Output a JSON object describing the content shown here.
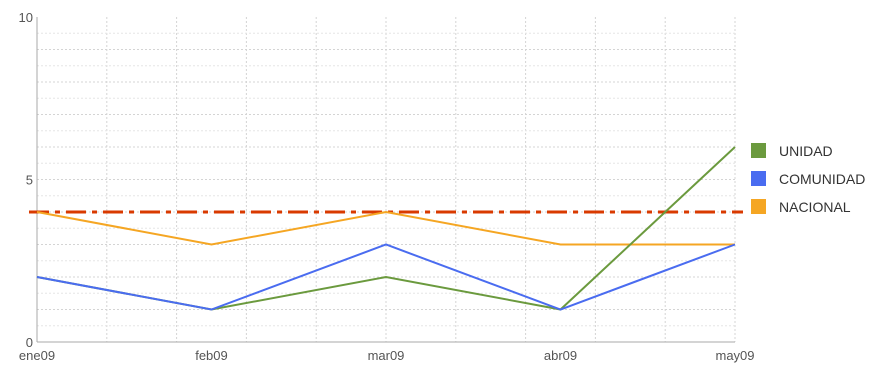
{
  "chart_data": {
    "type": "line",
    "title": "",
    "xlabel": "",
    "ylabel": "",
    "categories": [
      "ene09",
      "feb09",
      "mar09",
      "abr09",
      "may09"
    ],
    "ylim": [
      0,
      10
    ],
    "yticks": [
      0,
      5,
      10
    ],
    "grid": true,
    "legend_position": "right",
    "series": [
      {
        "name": "UNIDAD",
        "values": [
          2,
          1,
          2,
          1,
          6
        ],
        "color": "#6b9a3e"
      },
      {
        "name": "COMUNIDAD",
        "values": [
          2,
          1,
          3,
          1,
          3
        ],
        "color": "#4a6cf0"
      },
      {
        "name": "NACIONAL",
        "values": [
          4,
          3,
          4,
          3,
          3
        ],
        "color": "#f5a623"
      }
    ],
    "reference_line": {
      "value": 4,
      "color": "#d93a00",
      "style": "dash-dot"
    },
    "series_draw_order": [
      "NACIONAL",
      "UNIDAD",
      "COMUNIDAD"
    ]
  }
}
